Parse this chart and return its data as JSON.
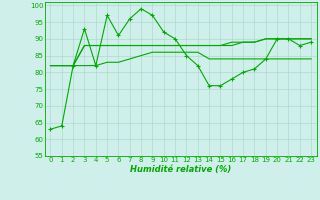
{
  "x": [
    0,
    1,
    2,
    3,
    4,
    5,
    6,
    7,
    8,
    9,
    10,
    11,
    12,
    13,
    14,
    15,
    16,
    17,
    18,
    19,
    20,
    21,
    22,
    23
  ],
  "line1": [
    63,
    64,
    82,
    93,
    82,
    97,
    91,
    96,
    99,
    97,
    92,
    90,
    85,
    82,
    76,
    76,
    78,
    80,
    81,
    84,
    90,
    90,
    88,
    89
  ],
  "line2": [
    82,
    82,
    82,
    88,
    88,
    88,
    88,
    88,
    88,
    88,
    88,
    88,
    88,
    88,
    88,
    88,
    89,
    89,
    89,
    90,
    90,
    90,
    90,
    90
  ],
  "line3": [
    82,
    82,
    82,
    82,
    82,
    83,
    83,
    84,
    85,
    86,
    86,
    86,
    86,
    86,
    84,
    84,
    84,
    84,
    84,
    84,
    84,
    84,
    84,
    84
  ],
  "line4": [
    82,
    82,
    82,
    88,
    88,
    88,
    88,
    88,
    88,
    88,
    88,
    88,
    88,
    88,
    88,
    88,
    88,
    89,
    89,
    90,
    90,
    90,
    90,
    90
  ],
  "bg_color": "#cff0ea",
  "grid_color": "#b0d8d0",
  "line_color": "#00aa00",
  "xlabel": "Humidité relative (%)",
  "ylim": [
    55,
    101
  ],
  "yticks": [
    55,
    60,
    65,
    70,
    75,
    80,
    85,
    90,
    95,
    100
  ],
  "xticks": [
    0,
    1,
    2,
    3,
    4,
    5,
    6,
    7,
    8,
    9,
    10,
    11,
    12,
    13,
    14,
    15,
    16,
    17,
    18,
    19,
    20,
    21,
    22,
    23
  ],
  "tick_fontsize": 5.0,
  "xlabel_fontsize": 6.0
}
